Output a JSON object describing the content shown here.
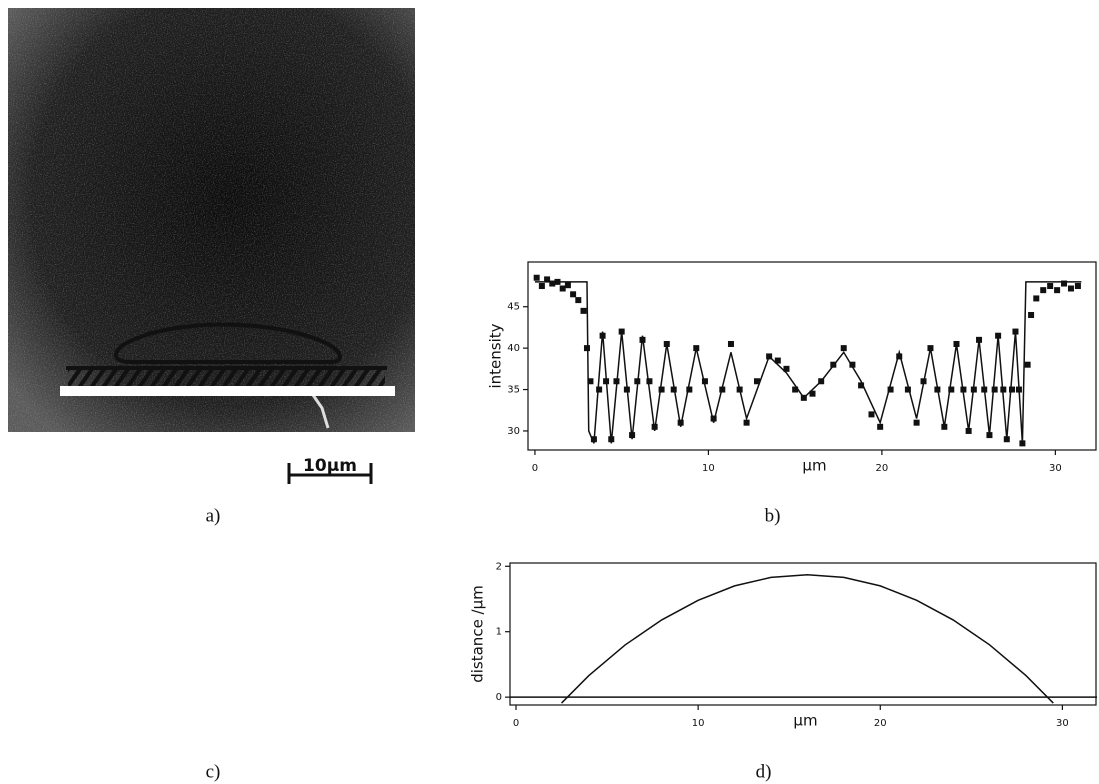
{
  "image_panel": {
    "scale_bar_label": "10μm",
    "caption": "a)"
  },
  "diagram_panel": {
    "caption": "c)"
  },
  "chart_data": [
    {
      "type": "scatter",
      "caption": "b)",
      "y_label": "intensity",
      "x_label": "μm",
      "xlim": [
        -0.4,
        32.4
      ],
      "ylim": [
        27.7,
        50.4
      ],
      "xticks": [
        0,
        10,
        20,
        30
      ],
      "yticks": [
        30,
        35,
        40,
        45
      ],
      "series": [
        {
          "style": "markers",
          "color": "#111111",
          "x": [
            0.1,
            0.4,
            0.7,
            1.0,
            1.3,
            1.6,
            1.9,
            2.2,
            2.5,
            2.8,
            3.0,
            3.2,
            3.4,
            3.7,
            3.9,
            4.1,
            4.4,
            4.7,
            5.0,
            5.3,
            5.6,
            5.9,
            6.2,
            6.6,
            6.9,
            7.3,
            7.6,
            8.0,
            8.4,
            8.9,
            9.3,
            9.8,
            10.3,
            10.8,
            11.3,
            11.8,
            12.2,
            12.8,
            13.5,
            14.0,
            14.5,
            15.0,
            15.5,
            16.0,
            16.5,
            17.2,
            17.8,
            18.3,
            18.8,
            19.4,
            19.9,
            20.5,
            21.0,
            21.5,
            22.0,
            22.4,
            22.8,
            23.2,
            23.6,
            24.0,
            24.3,
            24.7,
            25.0,
            25.3,
            25.6,
            25.9,
            26.2,
            26.5,
            26.7,
            27.0,
            27.2,
            27.5,
            27.7,
            27.9,
            28.1,
            28.4,
            28.6,
            28.9,
            29.3,
            29.7,
            30.1,
            30.5,
            30.9,
            31.3
          ],
          "values": [
            48.5,
            47.5,
            48.3,
            47.8,
            48.0,
            47.2,
            47.6,
            46.5,
            45.8,
            44.5,
            40,
            36,
            29,
            35,
            41.5,
            36,
            29,
            36,
            42,
            35,
            29.5,
            36,
            41,
            36,
            30.5,
            35,
            40.5,
            35,
            31,
            35,
            40,
            36,
            31.5,
            35,
            40.5,
            35,
            31,
            36,
            39,
            38.5,
            37.5,
            35,
            34,
            34.5,
            36,
            38,
            40,
            38,
            35.5,
            32,
            30.5,
            35,
            39,
            35,
            31,
            36,
            40,
            35,
            30.5,
            35,
            40.5,
            35,
            30,
            35,
            41,
            35,
            29.5,
            35,
            41.5,
            35,
            29,
            35,
            42,
            35,
            28.5,
            38,
            44,
            46,
            47,
            47.5,
            47.0,
            47.8,
            47.2,
            47.5
          ]
        },
        {
          "style": "line",
          "color": "#111111",
          "x": [
            0.0,
            3.0,
            3.1,
            3.4,
            3.9,
            4.4,
            5.0,
            5.6,
            6.2,
            6.9,
            7.6,
            8.4,
            9.3,
            10.3,
            11.3,
            12.2,
            13.5,
            14.5,
            15.5,
            16.5,
            17.8,
            18.8,
            19.9,
            21.0,
            22.0,
            22.8,
            23.6,
            24.3,
            25.0,
            25.6,
            26.2,
            26.7,
            27.2,
            27.7,
            28.1,
            28.3,
            31.5
          ],
          "values": [
            48,
            48,
            30,
            28.5,
            42,
            28.5,
            42,
            29,
            41.5,
            30,
            40.5,
            30.5,
            40,
            31,
            39.5,
            31.5,
            39,
            37,
            34,
            36,
            39.5,
            36,
            31,
            39.5,
            31.5,
            40,
            30.5,
            40.5,
            30,
            41,
            29.5,
            41.5,
            29,
            42,
            28.5,
            48,
            48
          ]
        }
      ]
    },
    {
      "type": "line",
      "caption": "d)",
      "y_label": "distance /μm",
      "x_label": "μm",
      "xlim": [
        -0.33,
        31.9
      ],
      "ylim": [
        -0.12,
        2.05
      ],
      "xticks": [
        0,
        10,
        20,
        30
      ],
      "yticks": [
        0,
        1,
        2
      ],
      "zero_line": true,
      "series": [
        {
          "style": "line",
          "color": "#111111",
          "x": [
            2.5,
            4,
            6,
            8,
            10,
            12,
            14,
            16,
            18,
            20,
            22,
            24,
            26,
            28,
            29.5
          ],
          "values": [
            -0.09,
            0.33,
            0.8,
            1.18,
            1.48,
            1.7,
            1.83,
            1.87,
            1.83,
            1.7,
            1.48,
            1.18,
            0.8,
            0.33,
            -0.09
          ]
        }
      ]
    }
  ]
}
